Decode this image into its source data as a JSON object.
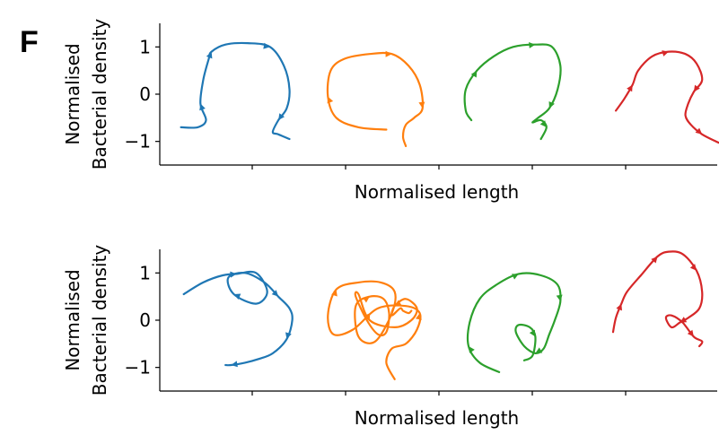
{
  "panel_letter": "F",
  "chart_data": [
    {
      "type": "line",
      "title": "",
      "xlabel": "Normalised length",
      "ylabel": [
        "Normalised",
        "Bacterial density"
      ],
      "ylim": [
        -1.5,
        1.5
      ],
      "yticks": [
        {
          "value": 1,
          "label": "1"
        },
        {
          "value": 0,
          "label": "0"
        },
        {
          "value": -1,
          "label": "−1"
        }
      ],
      "xticks_labels_shown": false,
      "grid": false,
      "colors": [
        "#1f77b4",
        "#ff7f0e",
        "#2ca02c",
        "#d62728"
      ],
      "series": [
        {
          "color": "#1f77b4",
          "x": [
            -1.2,
            -0.9,
            -0.75,
            -0.85,
            -0.8,
            -0.7,
            -0.65,
            -0.4,
            0,
            0.4,
            0.65,
            0.75,
            0.7,
            0.55,
            0.45,
            0.55,
            0.75
          ],
          "y": [
            -0.7,
            -0.7,
            -0.55,
            -0.2,
            0.3,
            0.75,
            0.9,
            1.05,
            1.08,
            1.0,
            0.6,
            0.1,
            -0.3,
            -0.55,
            -0.8,
            -0.85,
            -0.95
          ],
          "arrows_at": [
            3,
            6,
            9,
            13
          ]
        },
        {
          "color": "#ff7f0e",
          "x": [
            0.2,
            -0.3,
            -0.7,
            -0.85,
            -0.8,
            -0.55,
            -0.1,
            0.3,
            0.6,
            0.8,
            0.85,
            0.7,
            0.55,
            0.5,
            0.55
          ],
          "y": [
            -0.75,
            -0.7,
            -0.5,
            -0.05,
            0.5,
            0.75,
            0.85,
            0.85,
            0.6,
            0.2,
            -0.3,
            -0.5,
            -0.65,
            -0.9,
            -1.1
          ],
          "arrows_at": [
            3,
            7,
            10
          ]
        },
        {
          "color": "#2ca02c",
          "x": [
            -0.95,
            -1.05,
            -1.05,
            -0.85,
            -0.55,
            -0.2,
            0.2,
            0.5,
            0.65,
            0.6,
            0.45,
            0.25,
            0.15,
            0.3,
            0.4,
            0.3
          ],
          "y": [
            -0.55,
            -0.35,
            0.1,
            0.5,
            0.8,
            1.0,
            1.05,
            1.0,
            0.6,
            0.1,
            -0.3,
            -0.5,
            -0.6,
            -0.55,
            -0.7,
            -0.95
          ],
          "arrows_at": [
            3,
            6,
            10,
            14
          ]
        },
        {
          "color": "#d62728",
          "x": [
            -0.95,
            -0.8,
            -0.65,
            -0.55,
            -0.3,
            0,
            0.3,
            0.5,
            0.6,
            0.45,
            0.35,
            0.3,
            0.4,
            0.6,
            0.85,
            1.05
          ],
          "y": [
            -0.35,
            -0.1,
            0.2,
            0.5,
            0.8,
            0.9,
            0.85,
            0.65,
            0.3,
            0.05,
            -0.2,
            -0.45,
            -0.65,
            -0.85,
            -1.0,
            -1.1
          ],
          "arrows_at": [
            2,
            5,
            9,
            13
          ]
        }
      ]
    },
    {
      "type": "line",
      "title": "",
      "xlabel": "Normalised length",
      "ylabel": [
        "Normalised",
        "Bacterial density"
      ],
      "ylim": [
        -1.5,
        1.5
      ],
      "yticks": [
        {
          "value": 1,
          "label": "1"
        },
        {
          "value": 0,
          "label": "0"
        },
        {
          "value": -1,
          "label": "−1"
        }
      ],
      "xticks_labels_shown": false,
      "grid": false,
      "colors": [
        "#1f77b4",
        "#ff7f0e",
        "#2ca02c",
        "#d62728"
      ],
      "series": [
        {
          "color": "#1f77b4",
          "x": [
            -1.15,
            -0.8,
            -0.45,
            -0.2,
            0.15,
            0.35,
            0.15,
            -0.25,
            -0.35,
            -0.05,
            0.3,
            0.55,
            0.75,
            0.8,
            0.7,
            0.45,
            0.2,
            -0.05,
            -0.3,
            -0.4
          ],
          "y": [
            0.55,
            0.8,
            0.95,
            0.98,
            1.0,
            0.6,
            0.35,
            0.55,
            0.9,
            1.0,
            0.8,
            0.5,
            0.25,
            0.0,
            -0.4,
            -0.7,
            -0.82,
            -0.9,
            -0.95,
            -0.95
          ],
          "arrows_at": [
            3,
            7,
            11,
            14,
            18
          ]
        },
        {
          "color": "#ff7f0e",
          "x": [
            0.35,
            0.2,
            0.3,
            0.55,
            0.75,
            0.8,
            0.55,
            0.05,
            -0.4,
            -0.75,
            -0.85,
            -0.7,
            -0.3,
            0.1,
            0.35,
            0.3,
            0.0,
            -0.3,
            -0.35,
            -0.1,
            0.15,
            0.25,
            0.2,
            0.05,
            -0.15,
            -0.35,
            -0.3,
            -0.1,
            0.35,
            0.65,
            0.75,
            0.55,
            0.35,
            0.3,
            0.45,
            0.5,
            0.6,
            0.65
          ],
          "y": [
            -1.25,
            -0.9,
            -0.6,
            -0.5,
            -0.2,
            0.15,
            0.3,
            0.25,
            -0.2,
            -0.3,
            0.1,
            0.65,
            0.8,
            0.8,
            0.6,
            0.15,
            -0.45,
            -0.35,
            0.3,
            0.5,
            0.45,
            0.15,
            -0.25,
            -0.3,
            0.0,
            0.5,
            0.55,
            0.0,
            -0.15,
            0.0,
            0.25,
            0.45,
            0.3,
            0.1,
            0.25,
            0.2,
            0.15,
            0.2
          ],
          "arrows_at": [
            5,
            11,
            19,
            27,
            32
          ]
        },
        {
          "color": "#2ca02c",
          "x": [
            -0.45,
            -0.8,
            -1.0,
            -0.98,
            -0.8,
            -0.5,
            -0.1,
            0.3,
            0.6,
            0.65,
            0.55,
            0.45,
            0.35,
            0.2,
            0.0,
            -0.15,
            -0.1,
            0.1,
            0.2,
            0.15,
            0.0
          ],
          "y": [
            -1.1,
            -0.9,
            -0.55,
            -0.05,
            0.45,
            0.75,
            0.98,
            0.95,
            0.75,
            0.4,
            0.0,
            -0.3,
            -0.6,
            -0.7,
            -0.55,
            -0.25,
            -0.1,
            -0.15,
            -0.35,
            -0.75,
            -0.85
          ],
          "arrows_at": [
            2,
            6,
            9,
            13,
            18
          ]
        },
        {
          "color": "#d62728",
          "x": [
            -1.0,
            -0.95,
            -0.85,
            -0.75,
            -0.5,
            -0.2,
            0.0,
            0.25,
            0.5,
            0.6,
            0.55,
            0.35,
            0.2,
            0.05,
            -0.05,
            0.05,
            0.25,
            0.45,
            0.6,
            0.55
          ],
          "y": [
            -0.25,
            0.05,
            0.35,
            0.6,
            0.95,
            1.35,
            1.45,
            1.4,
            1.05,
            0.6,
            0.25,
            0.05,
            -0.05,
            -0.15,
            0.05,
            0.1,
            -0.05,
            -0.35,
            -0.45,
            -0.55
          ],
          "arrows_at": [
            2,
            5,
            8,
            12,
            17
          ]
        }
      ]
    }
  ]
}
